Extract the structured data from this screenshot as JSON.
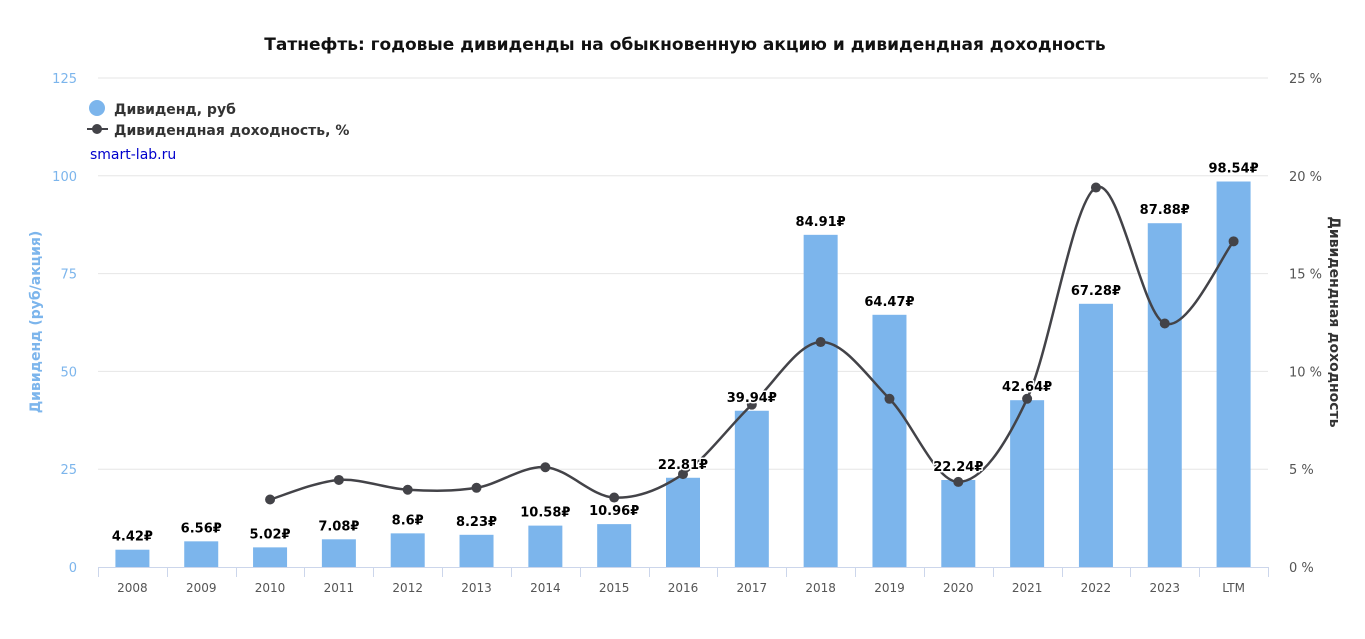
{
  "chart_data": {
    "type": "bar",
    "title": "Татнефть: годовые дивиденды на обыкновенную акцию и дивидендная доходность",
    "watermark": "smart-lab.ru",
    "categories": [
      "2008",
      "2009",
      "2010",
      "2011",
      "2012",
      "2013",
      "2014",
      "2015",
      "2016",
      "2017",
      "2018",
      "2019",
      "2020",
      "2021",
      "2022",
      "2023",
      "LTM"
    ],
    "series": [
      {
        "name": "Дивиденд, руб",
        "type": "bar",
        "axis": "left",
        "color": "#7cb5ec",
        "values": [
          4.42,
          6.56,
          5.02,
          7.08,
          8.6,
          8.23,
          10.58,
          10.96,
          22.81,
          39.94,
          84.91,
          64.47,
          22.24,
          42.64,
          67.28,
          87.88,
          98.54
        ],
        "labels": [
          "4.42₽",
          "6.56₽",
          "5.02₽",
          "7.08₽",
          "8.6₽",
          "8.23₽",
          "10.58₽",
          "10.96₽",
          "22.81₽",
          "39.94₽",
          "84.91₽",
          "64.47₽",
          "22.24₽",
          "42.64₽",
          "67.28₽",
          "87.88₽",
          "98.54₽"
        ]
      },
      {
        "name": "Дивидендная доходность, %",
        "type": "line",
        "axis": "right",
        "color": "#434348",
        "values": [
          null,
          null,
          3.45,
          4.45,
          3.95,
          4.05,
          5.1,
          3.55,
          4.75,
          8.3,
          11.5,
          8.6,
          4.35,
          8.6,
          19.4,
          12.45,
          16.65
        ]
      }
    ],
    "y_left": {
      "label": "Дивиденд (руб/акция)",
      "ylim": [
        0,
        125
      ],
      "ticks": [
        "0",
        "25",
        "50",
        "75",
        "100",
        "125"
      ],
      "tick_values": [
        0,
        25,
        50,
        75,
        100,
        125
      ]
    },
    "y_right": {
      "label": "Дивидендная доходность",
      "ylim": [
        0,
        25
      ],
      "ticks": [
        "0 %",
        "5 %",
        "10 %",
        "15 %",
        "20 %",
        "25 %"
      ],
      "tick_values": [
        0,
        5,
        10,
        15,
        20,
        25
      ]
    },
    "grid": true,
    "legend": "top-left"
  }
}
